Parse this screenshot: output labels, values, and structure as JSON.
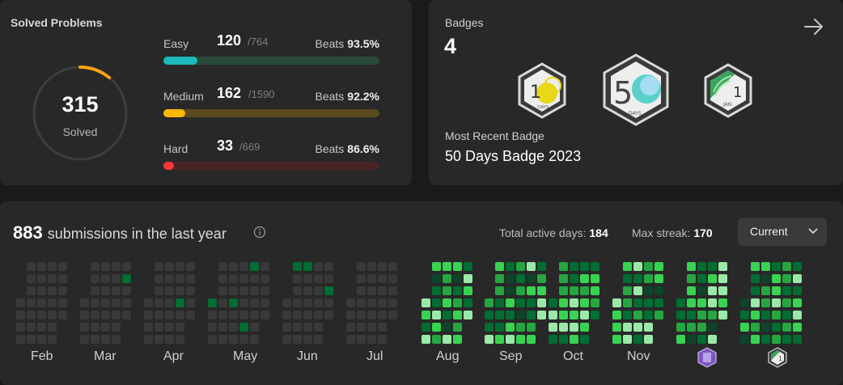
{
  "solved": {
    "title": "Solved Problems",
    "total": "315",
    "total_label": "Solved",
    "difficulties": [
      {
        "label": "Easy",
        "count": "120",
        "total": "/764",
        "beats_label": "Beats",
        "beats": "93.5%",
        "fraction": 0.157,
        "color": "#1cbaba",
        "track": "#2a4a3a"
      },
      {
        "label": "Medium",
        "count": "162",
        "total": "/1590",
        "beats_label": "Beats",
        "beats": "92.2%",
        "fraction": 0.102,
        "color": "#ffb700",
        "track": "#5a4a1e"
      },
      {
        "label": "Hard",
        "count": "33",
        "total": "/669",
        "beats_label": "Beats",
        "beats": "86.6%",
        "fraction": 0.049,
        "color": "#f63737",
        "track": "#4a2424"
      }
    ]
  },
  "badges": {
    "label": "Badges",
    "count": "4",
    "recent_label": "Most Recent Badge",
    "recent_name": "50 Days Badge 2023",
    "items": [
      {
        "icon": "100-days-badge-icon"
      },
      {
        "icon": "50-days-badge-icon"
      },
      {
        "icon": "annual-jan-badge-icon"
      }
    ]
  },
  "submissions": {
    "count": "883",
    "text": "submissions in the last year",
    "active_label": "Total active days:",
    "active_value": "184",
    "streak_label": "Max streak:",
    "streak_value": "170",
    "dropdown": "Current",
    "months": [
      "Feb",
      "Mar",
      "Apr",
      "May",
      "Jun",
      "Jul",
      "Aug",
      "Sep",
      "Oct",
      "Nov"
    ],
    "colors": {
      "empty": "#393939",
      "l1": "#0e4429",
      "l2": "#006d32",
      "l3": "#26a641",
      "l4": "#39d353",
      "l5": "#9be9a8"
    }
  }
}
